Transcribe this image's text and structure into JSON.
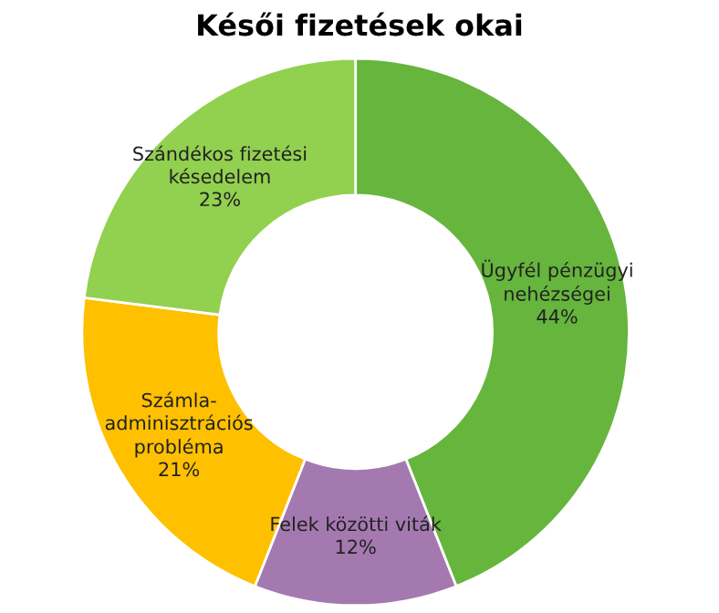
{
  "chart_data": {
    "type": "donut",
    "title": "Késői fizetések okai",
    "categories": [
      "Ügyfél pénzügyi\nnehézségei",
      "Felek közötti viták",
      "Számla-\nadminisztrációs\nprobléma",
      "Szándékos fizetési\nkésedelem"
    ],
    "values": [
      44,
      12,
      21,
      23
    ],
    "value_labels": [
      "44%",
      "12%",
      "21%",
      "23%"
    ],
    "colors": [
      "#66b53d",
      "#a479b0",
      "#ffc000",
      "#92d050"
    ],
    "legend": false
  }
}
